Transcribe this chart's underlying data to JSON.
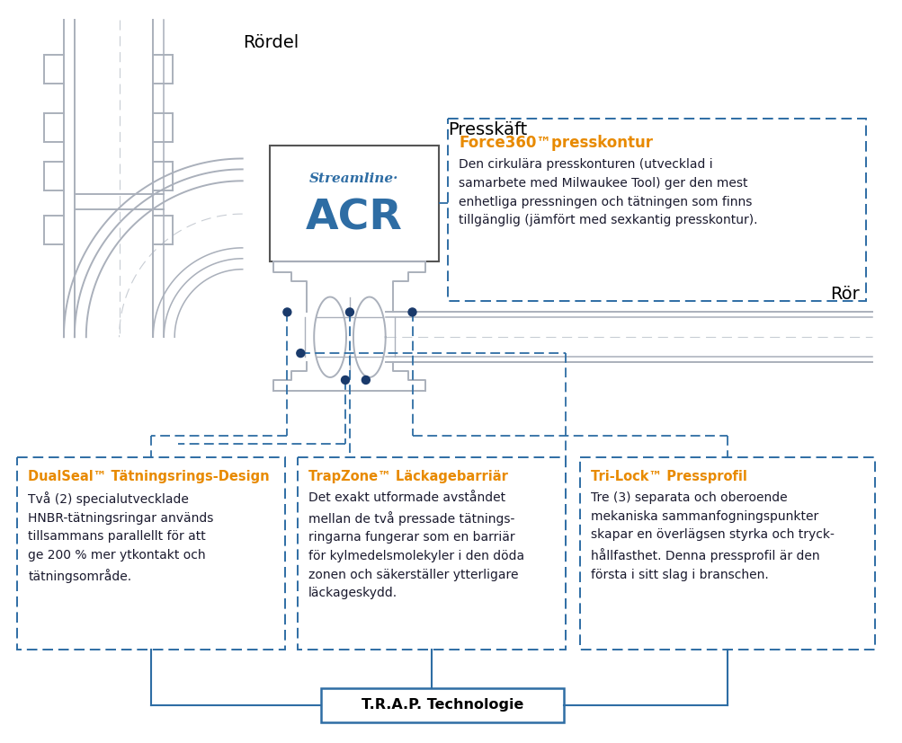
{
  "bg_color": "#ffffff",
  "pipe_color": "#aab0bb",
  "pipe_color2": "#c8cdd4",
  "dot_color": "#1a3a6b",
  "dash_color": "#2e6da4",
  "orange_color": "#e88a00",
  "box_border_color": "#2e6da4",
  "text_body_color": "#1a1a2e",
  "label_rordel": "Rördel",
  "label_presskaeft": "Presskäft",
  "label_ror": "Rör",
  "force360_title": "Force360™presskontur",
  "force360_body": "Den cirkulära presskonturen (utvecklad i\nsamarbete med Milwaukee Tool) ger den mest\nenhetliga pressningen och tätningen som finns\ntillgänglig (jämfört med sexkantig presskontur).",
  "dualseal_title": "DualSeal™ Tätningsrings-Design",
  "dualseal_body": "Två (2) specialutvecklade\nHNBR-tätningsringar används\ntillsammans parallellt för att\nge 200 % mer ytkontakt och\ntätningsområde.",
  "trapzone_title": "TrapZone™ Läckagebarriär",
  "trapzone_body": "Det exakt utformade avståndet\nmellan de två pressade tätnings-\nringarna fungerar som en barriär\nför kylmedelsmolekyler i den döda\nzonen och säkerställer ytterligare\nläckageskydd.",
  "trilock_title": "Tri-Lock™ Pressprofil",
  "trilock_body": "Tre (3) separata och oberoende\nmekaniska sammanfogningspunkter\nskapar en överlägsen styrka och tryck-\nhållfasthet. Denna pressprofil är den\nförsta i sitt slag i branschen.",
  "trap_label": "T.R.A.P. Technologie",
  "acr_text": "ACR",
  "streamline_text": "Streamline·"
}
